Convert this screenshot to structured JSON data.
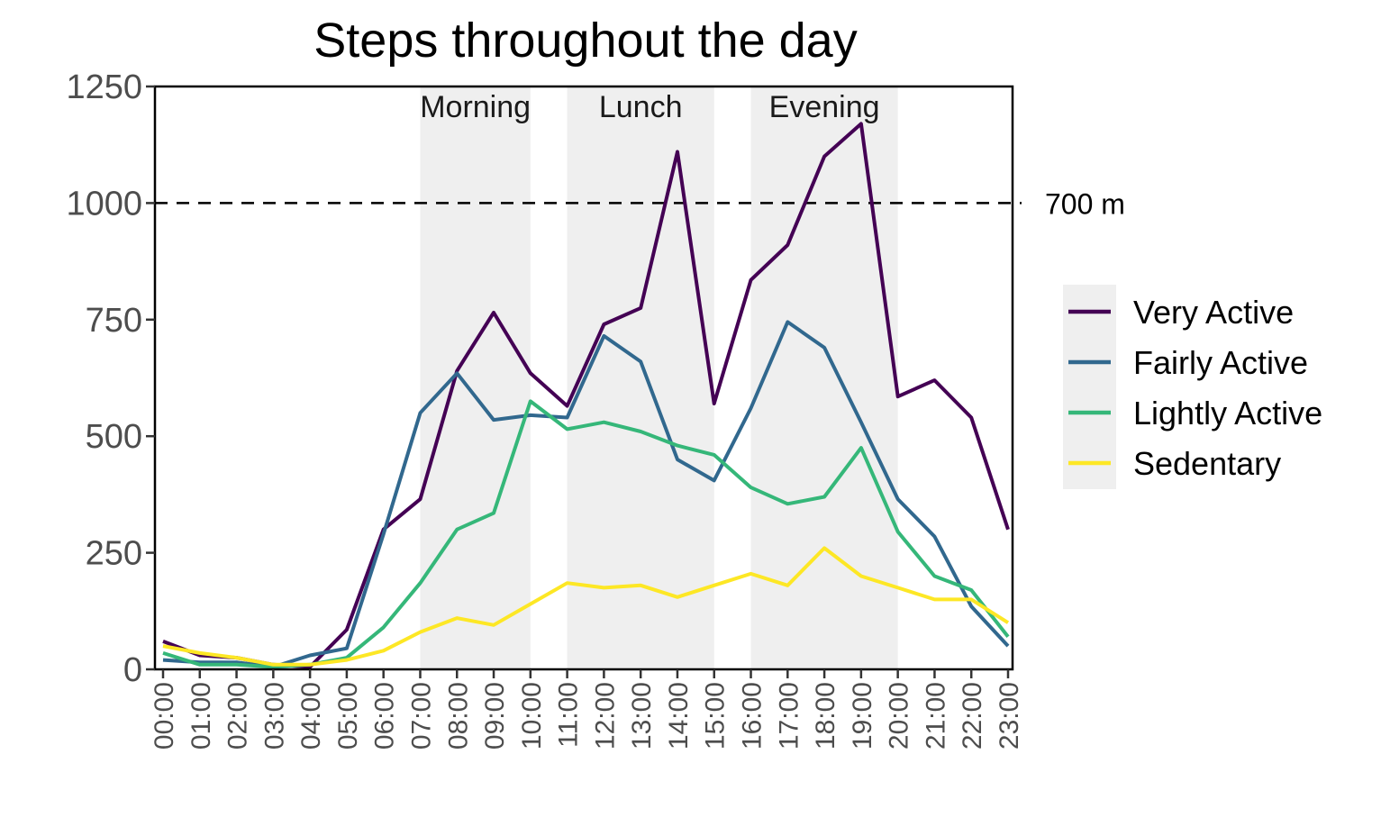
{
  "chart_data": {
    "type": "line",
    "title": "Steps throughout the day",
    "xlabel": "",
    "ylabel": "",
    "ylim": [
      0,
      1250
    ],
    "yticks": [
      0,
      250,
      500,
      750,
      1000,
      1250
    ],
    "x": [
      "00:00",
      "01:00",
      "02:00",
      "03:00",
      "04:00",
      "05:00",
      "06:00",
      "07:00",
      "08:00",
      "09:00",
      "10:00",
      "11:00",
      "12:00",
      "13:00",
      "14:00",
      "15:00",
      "16:00",
      "17:00",
      "18:00",
      "19:00",
      "20:00",
      "21:00",
      "22:00",
      "23:00"
    ],
    "grid": false,
    "legend": "right",
    "bands": [
      {
        "label": "Morning",
        "from": "07:00",
        "to": "10:00"
      },
      {
        "label": "Lunch",
        "from": "11:00",
        "to": "15:00"
      },
      {
        "label": "Evening",
        "from": "16:00",
        "to": "20:00"
      }
    ],
    "band_color": "#efefef",
    "reference_line": {
      "y": 1000,
      "label": "700 m",
      "style": "dashed"
    },
    "series": [
      {
        "name": "Very Active",
        "color": "#440154",
        "values": [
          60,
          30,
          25,
          10,
          5,
          85,
          300,
          365,
          640,
          765,
          635,
          565,
          740,
          775,
          1110,
          570,
          835,
          910,
          1100,
          1170,
          585,
          620,
          540,
          300
        ]
      },
      {
        "name": "Fairly Active",
        "color": "#31688e",
        "values": [
          20,
          15,
          15,
          5,
          30,
          45,
          290,
          550,
          635,
          535,
          545,
          540,
          715,
          660,
          450,
          405,
          560,
          745,
          690,
          530,
          365,
          285,
          135,
          50
        ]
      },
      {
        "name": "Lightly Active",
        "color": "#35b779",
        "values": [
          35,
          10,
          10,
          5,
          10,
          25,
          90,
          185,
          300,
          335,
          575,
          515,
          530,
          510,
          480,
          460,
          390,
          355,
          370,
          475,
          295,
          200,
          170,
          70
        ]
      },
      {
        "name": "Sedentary",
        "color": "#fde725",
        "values": [
          50,
          35,
          25,
          10,
          10,
          20,
          40,
          80,
          110,
          95,
          140,
          185,
          175,
          180,
          155,
          180,
          205,
          180,
          260,
          200,
          175,
          150,
          150,
          100
        ]
      }
    ]
  }
}
